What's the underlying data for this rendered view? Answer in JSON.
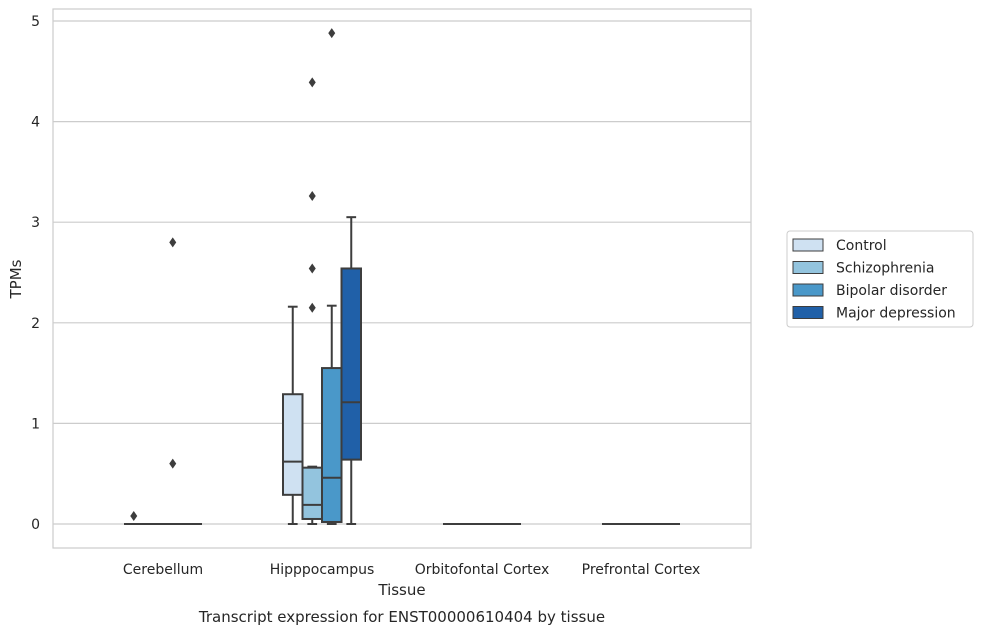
{
  "chart_data": {
    "type": "box",
    "title": "",
    "caption": "Transcript expression for ENST00000610404 by tissue",
    "xlabel": "Tissue",
    "ylabel": "TPMs",
    "ylim": [
      -0.23,
      5.12
    ],
    "yticks": [
      0,
      1,
      2,
      3,
      4,
      5
    ],
    "grid": true,
    "legend_position": "right",
    "categories": [
      "Cerebellum",
      "Hipppocampus",
      "Orbitofontal Cortex",
      "Prefrontal Cortex"
    ],
    "series": [
      {
        "name": "Control",
        "color": "#cfe1f2",
        "boxes": [
          {
            "whislo": 0,
            "q1": 0,
            "med": 0,
            "q3": 0,
            "whishi": 0,
            "fliers": [
              0.08
            ]
          },
          {
            "whislo": 0,
            "q1": 0.29,
            "med": 0.62,
            "q3": 1.29,
            "whishi": 2.16,
            "fliers": []
          },
          {
            "whislo": 0,
            "q1": 0,
            "med": 0,
            "q3": 0,
            "whishi": 0,
            "fliers": []
          },
          {
            "whislo": 0,
            "q1": 0,
            "med": 0,
            "q3": 0,
            "whishi": 0,
            "fliers": []
          }
        ]
      },
      {
        "name": "Schizophrenia",
        "color": "#93c4de",
        "boxes": [
          {
            "whislo": 0,
            "q1": 0,
            "med": 0,
            "q3": 0,
            "whishi": 0,
            "fliers": []
          },
          {
            "whislo": 0,
            "q1": 0.05,
            "med": 0.19,
            "q3": 0.56,
            "whishi": 0.57,
            "fliers": [
              2.15,
              2.54,
              3.26,
              4.39
            ]
          },
          {
            "whislo": 0,
            "q1": 0,
            "med": 0,
            "q3": 0,
            "whishi": 0,
            "fliers": []
          },
          {
            "whislo": 0,
            "q1": 0,
            "med": 0,
            "q3": 0,
            "whishi": 0,
            "fliers": []
          }
        ]
      },
      {
        "name": "Bipolar disorder",
        "color": "#4a98c9",
        "boxes": [
          {
            "whislo": 0,
            "q1": 0,
            "med": 0,
            "q3": 0,
            "whishi": 0,
            "fliers": [
              0.6,
              2.8
            ]
          },
          {
            "whislo": 0,
            "q1": 0.02,
            "med": 0.46,
            "q3": 1.55,
            "whishi": 2.17,
            "fliers": [
              4.88
            ]
          },
          {
            "whislo": 0,
            "q1": 0,
            "med": 0,
            "q3": 0,
            "whishi": 0,
            "fliers": []
          },
          {
            "whislo": 0,
            "q1": 0,
            "med": 0,
            "q3": 0,
            "whishi": 0,
            "fliers": []
          }
        ]
      },
      {
        "name": "Major depression",
        "color": "#2060a8",
        "boxes": [
          {
            "whislo": 0,
            "q1": 0,
            "med": 0,
            "q3": 0,
            "whishi": 0,
            "fliers": []
          },
          {
            "whislo": 0,
            "q1": 0.64,
            "med": 1.21,
            "q3": 2.54,
            "whishi": 3.05,
            "fliers": []
          },
          {
            "whislo": 0,
            "q1": 0,
            "med": 0,
            "q3": 0,
            "whishi": 0,
            "fliers": []
          },
          {
            "whislo": 0,
            "q1": 0,
            "med": 0,
            "q3": 0,
            "whishi": 0,
            "fliers": []
          }
        ]
      }
    ]
  }
}
